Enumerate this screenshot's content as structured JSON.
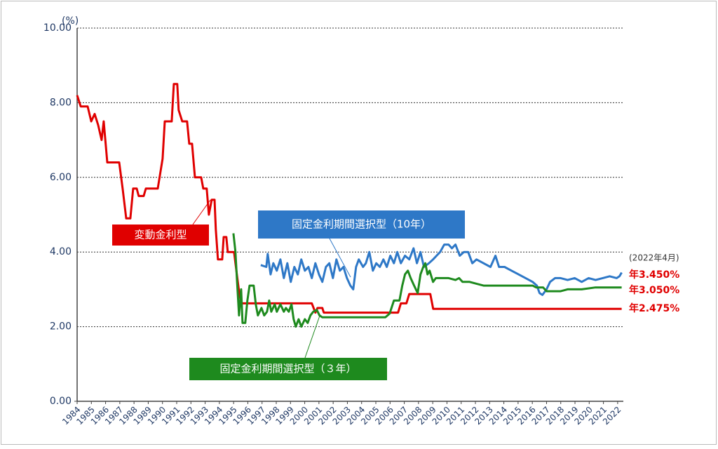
{
  "chart_data": {
    "type": "line",
    "unit_label": "(%)",
    "annotation": "(2022年4月)",
    "xlim": [
      1984,
      2022.4
    ],
    "xticks": [
      1984,
      1985,
      1986,
      1987,
      1988,
      1989,
      1990,
      1991,
      1992,
      1993,
      1994,
      1995,
      1996,
      1997,
      1998,
      1999,
      2000,
      2001,
      2002,
      2003,
      2004,
      2005,
      2006,
      2007,
      2008,
      2009,
      2010,
      2011,
      2012,
      2013,
      2014,
      2015,
      2016,
      2017,
      2018,
      2019,
      2020,
      2021,
      2022
    ],
    "ylim": [
      0,
      10
    ],
    "yticks": [
      {
        "value": 0,
        "label": "0.00"
      },
      {
        "value": 2,
        "label": "2.00"
      },
      {
        "value": 4,
        "label": "4.00"
      },
      {
        "value": 6,
        "label": "6.00"
      },
      {
        "value": 8,
        "label": "8.00"
      },
      {
        "value": 10,
        "label": "10.00"
      }
    ],
    "grid": true,
    "series": [
      {
        "name": "変動金利型",
        "color": "#e00000",
        "end_label": "年2.475%",
        "x": [
          1984.0,
          1984.25,
          1984.74,
          1984.99,
          1985.23,
          1985.48,
          1985.72,
          1985.87,
          1986.12,
          1986.96,
          1987.2,
          1987.45,
          1987.74,
          1987.94,
          1988.19,
          1988.33,
          1988.68,
          1988.83,
          1989.67,
          1990.01,
          1990.16,
          1990.65,
          1990.8,
          1991.04,
          1991.14,
          1991.39,
          1991.73,
          1991.88,
          1992.08,
          1992.28,
          1992.72,
          1992.87,
          1993.11,
          1993.26,
          1993.46,
          1993.66,
          1993.75,
          1993.9,
          1994.2,
          1994.3,
          1994.49,
          1994.59,
          1995.03,
          1995.23,
          1995.43,
          1995.58,
          2000.5,
          2000.75,
          2000.9,
          2001.24,
          2001.34,
          2006.56,
          2006.76,
          2007.15,
          2007.35,
          2008.83,
          2009.03,
          2022.28
        ],
        "values": [
          8.2,
          7.9,
          7.9,
          7.5,
          7.7,
          7.4,
          7.0,
          7.5,
          6.4,
          6.4,
          5.7,
          4.9,
          4.9,
          5.7,
          5.7,
          5.5,
          5.5,
          5.7,
          5.7,
          6.5,
          7.5,
          7.5,
          8.5,
          8.5,
          7.8,
          7.5,
          7.5,
          6.9,
          6.9,
          6.0,
          6.0,
          5.7,
          5.7,
          5.0,
          5.4,
          5.4,
          4.6,
          3.8,
          3.8,
          4.4,
          4.4,
          4.0,
          4.0,
          3.4,
          2.8,
          2.625,
          2.625,
          2.375,
          2.5,
          2.5,
          2.375,
          2.375,
          2.625,
          2.625,
          2.875,
          2.875,
          2.475,
          2.475
        ]
      },
      {
        "name": "固定金利期間選択型（10年）",
        "color": "#2e78c7",
        "end_label": "年3.450%",
        "x": [
          1996.91,
          1997.3,
          1997.4,
          1997.6,
          1997.79,
          1998.04,
          1998.29,
          1998.53,
          1998.78,
          1999.02,
          1999.27,
          1999.52,
          1999.76,
          2000.01,
          2000.26,
          2000.5,
          2000.75,
          2001.0,
          2001.24,
          2001.49,
          2001.73,
          2001.98,
          2002.23,
          2002.47,
          2002.72,
          2002.97,
          2003.21,
          2003.41,
          2003.61,
          2003.8,
          2004.1,
          2004.3,
          2004.54,
          2004.79,
          2005.03,
          2005.28,
          2005.53,
          2005.77,
          2006.02,
          2006.27,
          2006.51,
          2006.76,
          2007.05,
          2007.35,
          2007.65,
          2007.89,
          2008.14,
          2008.38,
          2008.73,
          2009.02,
          2009.27,
          2009.52,
          2009.81,
          2010.11,
          2010.35,
          2010.6,
          2010.9,
          2011.19,
          2011.49,
          2011.78,
          2012.08,
          2012.57,
          2013.06,
          2013.41,
          2013.66,
          2014.05,
          2014.54,
          2015.03,
          2015.53,
          2016.02,
          2016.32,
          2016.51,
          2016.71,
          2017.0,
          2017.25,
          2017.6,
          2017.99,
          2018.48,
          2018.98,
          2019.47,
          2019.96,
          2020.45,
          2020.95,
          2021.44,
          2021.93,
          2022.13,
          2022.28
        ],
        "values": [
          3.65,
          3.6,
          3.95,
          3.4,
          3.7,
          3.5,
          3.8,
          3.3,
          3.7,
          3.2,
          3.6,
          3.4,
          3.8,
          3.5,
          3.6,
          3.3,
          3.7,
          3.4,
          3.2,
          3.6,
          3.7,
          3.3,
          3.8,
          3.5,
          3.6,
          3.3,
          3.1,
          3.0,
          3.6,
          3.8,
          3.6,
          3.7,
          4.0,
          3.5,
          3.7,
          3.6,
          3.8,
          3.6,
          3.9,
          3.7,
          4.0,
          3.7,
          3.9,
          3.8,
          4.1,
          3.7,
          4.0,
          3.6,
          3.7,
          3.8,
          3.9,
          4.0,
          4.2,
          4.2,
          4.1,
          4.2,
          3.9,
          4.0,
          4.0,
          3.7,
          3.8,
          3.7,
          3.6,
          3.9,
          3.6,
          3.6,
          3.5,
          3.4,
          3.3,
          3.2,
          3.1,
          2.9,
          2.85,
          3.0,
          3.2,
          3.3,
          3.3,
          3.25,
          3.3,
          3.2,
          3.3,
          3.25,
          3.3,
          3.35,
          3.3,
          3.35,
          3.45
        ]
      },
      {
        "name": "固定金利期間選択型（３年）",
        "color": "#1e8a1e",
        "end_label": "年3.050%",
        "x": [
          1994.99,
          1995.13,
          1995.23,
          1995.38,
          1995.53,
          1995.63,
          1995.82,
          1995.97,
          1996.12,
          1996.41,
          1996.56,
          1996.71,
          1996.96,
          1997.15,
          1997.35,
          1997.5,
          1997.65,
          1997.89,
          1998.04,
          1998.29,
          1998.53,
          1998.68,
          1998.88,
          1999.07,
          1999.22,
          1999.37,
          1999.57,
          1999.76,
          2000.01,
          2000.21,
          2000.4,
          2000.6,
          2000.85,
          2001.04,
          2001.24,
          2005.67,
          2005.97,
          2006.27,
          2006.66,
          2006.86,
          2007.05,
          2007.25,
          2007.45,
          2007.69,
          2007.94,
          2008.14,
          2008.33,
          2008.48,
          2008.63,
          2008.78,
          2009.02,
          2009.22,
          2010.11,
          2010.6,
          2010.85,
          2011.09,
          2011.59,
          2012.08,
          2012.57,
          2016.02,
          2016.27,
          2016.76,
          2017.0,
          2017.99,
          2018.48,
          2019.47,
          2020.45,
          2021.93,
          2022.28
        ],
        "values": [
          4.5,
          4.0,
          3.3,
          2.3,
          3.0,
          2.1,
          2.1,
          2.7,
          3.1,
          3.1,
          2.6,
          2.3,
          2.5,
          2.3,
          2.4,
          2.7,
          2.4,
          2.6,
          2.4,
          2.6,
          2.4,
          2.5,
          2.4,
          2.6,
          2.2,
          2.0,
          2.2,
          2.0,
          2.2,
          2.1,
          2.3,
          2.4,
          2.45,
          2.3,
          2.25,
          2.25,
          2.35,
          2.7,
          2.7,
          3.1,
          3.4,
          3.5,
          3.3,
          3.1,
          2.9,
          3.4,
          3.6,
          3.7,
          3.4,
          3.5,
          3.2,
          3.3,
          3.3,
          3.25,
          3.3,
          3.2,
          3.2,
          3.15,
          3.1,
          3.1,
          3.05,
          3.05,
          2.95,
          2.95,
          3.0,
          3.0,
          3.05,
          3.05,
          3.05
        ]
      }
    ]
  }
}
